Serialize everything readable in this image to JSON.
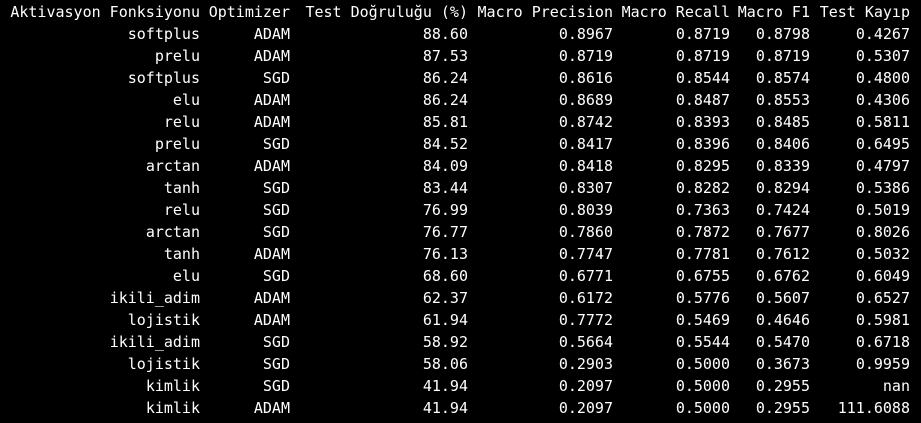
{
  "table": {
    "columns": {
      "activation": "Aktivasyon Fonksiyonu",
      "optimizer": "Optimizer",
      "accuracy": "Test Doğruluğu (%)",
      "precision": "Macro Precision",
      "recall": "Macro Recall",
      "f1": "Macro F1",
      "loss": "Test Kayıp"
    },
    "rows": [
      {
        "activation": "softplus",
        "optimizer": "ADAM",
        "accuracy": "88.60",
        "precision": "0.8967",
        "recall": "0.8719",
        "f1": "0.8798",
        "loss": "0.4267"
      },
      {
        "activation": "prelu",
        "optimizer": "ADAM",
        "accuracy": "87.53",
        "precision": "0.8719",
        "recall": "0.8719",
        "f1": "0.8719",
        "loss": "0.5307"
      },
      {
        "activation": "softplus",
        "optimizer": "SGD",
        "accuracy": "86.24",
        "precision": "0.8616",
        "recall": "0.8544",
        "f1": "0.8574",
        "loss": "0.4800"
      },
      {
        "activation": "elu",
        "optimizer": "ADAM",
        "accuracy": "86.24",
        "precision": "0.8689",
        "recall": "0.8487",
        "f1": "0.8553",
        "loss": "0.4306"
      },
      {
        "activation": "relu",
        "optimizer": "ADAM",
        "accuracy": "85.81",
        "precision": "0.8742",
        "recall": "0.8393",
        "f1": "0.8485",
        "loss": "0.5811"
      },
      {
        "activation": "prelu",
        "optimizer": "SGD",
        "accuracy": "84.52",
        "precision": "0.8417",
        "recall": "0.8396",
        "f1": "0.8406",
        "loss": "0.6495"
      },
      {
        "activation": "arctan",
        "optimizer": "ADAM",
        "accuracy": "84.09",
        "precision": "0.8418",
        "recall": "0.8295",
        "f1": "0.8339",
        "loss": "0.4797"
      },
      {
        "activation": "tanh",
        "optimizer": "SGD",
        "accuracy": "83.44",
        "precision": "0.8307",
        "recall": "0.8282",
        "f1": "0.8294",
        "loss": "0.5386"
      },
      {
        "activation": "relu",
        "optimizer": "SGD",
        "accuracy": "76.99",
        "precision": "0.8039",
        "recall": "0.7363",
        "f1": "0.7424",
        "loss": "0.5019"
      },
      {
        "activation": "arctan",
        "optimizer": "SGD",
        "accuracy": "76.77",
        "precision": "0.7860",
        "recall": "0.7872",
        "f1": "0.7677",
        "loss": "0.8026"
      },
      {
        "activation": "tanh",
        "optimizer": "ADAM",
        "accuracy": "76.13",
        "precision": "0.7747",
        "recall": "0.7781",
        "f1": "0.7612",
        "loss": "0.5032"
      },
      {
        "activation": "elu",
        "optimizer": "SGD",
        "accuracy": "68.60",
        "precision": "0.6771",
        "recall": "0.6755",
        "f1": "0.6762",
        "loss": "0.6049"
      },
      {
        "activation": "ikili_adim",
        "optimizer": "ADAM",
        "accuracy": "62.37",
        "precision": "0.6172",
        "recall": "0.5776",
        "f1": "0.5607",
        "loss": "0.6527"
      },
      {
        "activation": "lojistik",
        "optimizer": "ADAM",
        "accuracy": "61.94",
        "precision": "0.7772",
        "recall": "0.5469",
        "f1": "0.4646",
        "loss": "0.5981"
      },
      {
        "activation": "ikili_adim",
        "optimizer": "SGD",
        "accuracy": "58.92",
        "precision": "0.5664",
        "recall": "0.5544",
        "f1": "0.5470",
        "loss": "0.6718"
      },
      {
        "activation": "lojistik",
        "optimizer": "SGD",
        "accuracy": "58.06",
        "precision": "0.2903",
        "recall": "0.5000",
        "f1": "0.3673",
        "loss": "0.9959"
      },
      {
        "activation": "kimlik",
        "optimizer": "SGD",
        "accuracy": "41.94",
        "precision": "0.2097",
        "recall": "0.5000",
        "f1": "0.2955",
        "loss": "nan"
      },
      {
        "activation": "kimlik",
        "optimizer": "ADAM",
        "accuracy": "41.94",
        "precision": "0.2097",
        "recall": "0.5000",
        "f1": "0.2955",
        "loss": "111.6088"
      }
    ]
  },
  "colors": {
    "background": "#000000",
    "text": "#ffffff"
  }
}
